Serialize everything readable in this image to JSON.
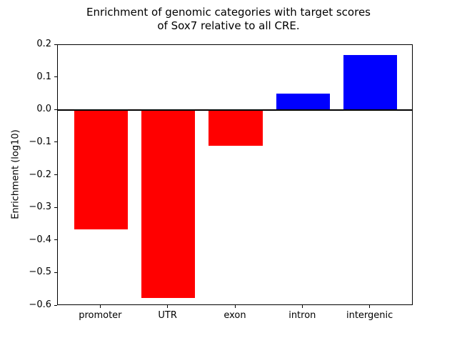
{
  "title_line1": "Enrichment of genomic categories with target scores",
  "title_line2": "of Sox7 relative to all CRE.",
  "chart_data": {
    "type": "bar",
    "title": "Enrichment of genomic categories with target scores of Sox7 relative to all CRE.",
    "categories": [
      "promoter",
      "UTR",
      "exon",
      "intron",
      "intergenic"
    ],
    "values": [
      -0.365,
      -0.575,
      -0.11,
      0.05,
      0.17
    ],
    "xlabel": "",
    "ylabel": "Enrichment (log10)",
    "ylim": [
      -0.6,
      0.2
    ],
    "yticks": [
      0.2,
      0.1,
      0.0,
      -0.1,
      -0.2,
      -0.3,
      -0.4,
      -0.5,
      -0.6
    ],
    "grid": false,
    "legend": "none",
    "zero_line": true,
    "colors": {
      "positive_bar": "#0000ff",
      "negative_bar": "#ff0000",
      "axis": "#000000",
      "background": "#ffffff"
    }
  }
}
